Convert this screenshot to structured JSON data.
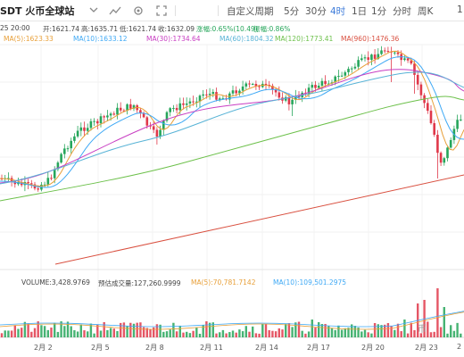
{
  "toolbar": {
    "pair": "SDT 火币全球站",
    "icons": [
      "collapse-icon",
      "indicator-icon",
      "settings-icon",
      "fullscreen-icon"
    ],
    "period_custom": "自定义周期",
    "timeframes": [
      "5分",
      "30分",
      "4时",
      "1日",
      "1分",
      "分时",
      "周K"
    ],
    "active_timeframe": "4时",
    "overflow": "1"
  },
  "ohlc": {
    "date": "25 20:00",
    "open": "开:1621.74",
    "high": "高:1635.71",
    "low": "低:1621.74",
    "close": "收:1632.09",
    "change": "涨幅:0.65%(10.49)",
    "amplitude": "振幅:0.86%"
  },
  "ma": {
    "ma5": "MA(5):1623.33",
    "ma10": "MA(10):1633.12",
    "ma30": "MA(30):1734.64",
    "ma60": "MA(60):1804.32",
    "ma120": "MA(120):1773.41",
    "ma_extra": "MA(960):1476.36"
  },
  "volume": {
    "volume": "VOLUME:3,428.9769",
    "predict": "预估成交量:127,260.9999",
    "ma5": "MA(5):70,781.7142",
    "ma10": "MA(10):109,501.2975"
  },
  "xaxis": [
    "2月 2",
    "2月 5",
    "2月 8",
    "2月 11",
    "2月 14",
    "2月 17",
    "2月 20",
    "2月 23",
    "2"
  ],
  "watermark": "币",
  "colors": {
    "up": "#26a65b",
    "down": "#e0384a",
    "ma5": "#e8a03a",
    "ma10": "#3fa9f5",
    "ma30": "#c83dc2",
    "ma60": "#58b3d6",
    "ma120": "#6cc04a",
    "ma960": "#d95040",
    "active": "#3d7bd9"
  }
}
